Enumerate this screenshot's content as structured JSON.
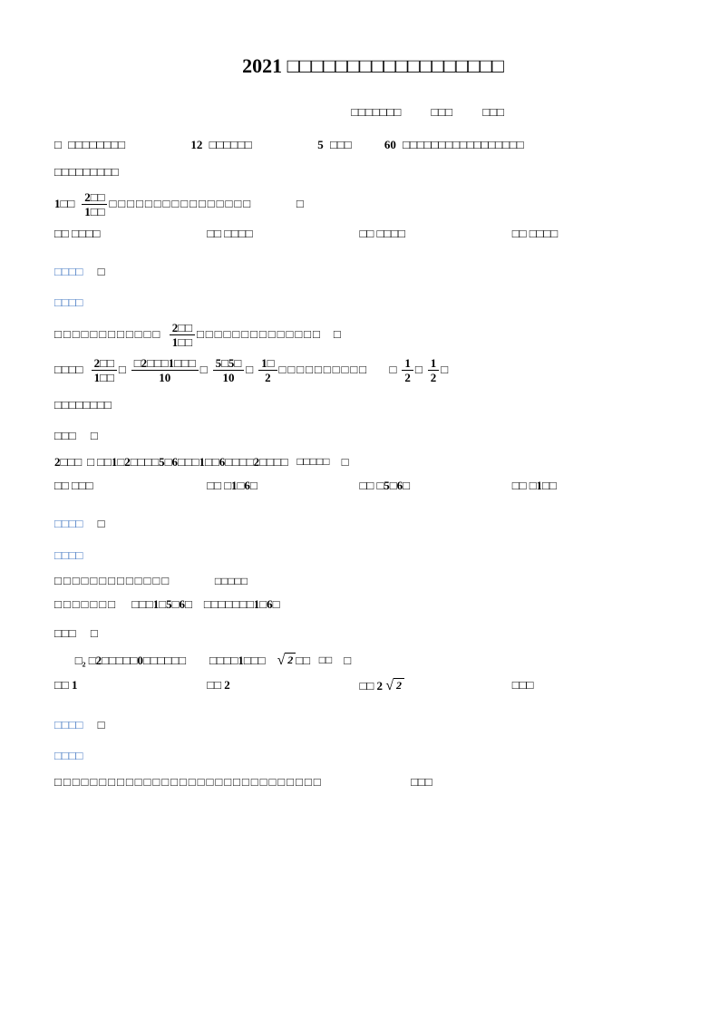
{
  "colors": {
    "text": "#000000",
    "blue": "#4a7cc4",
    "bg": "#ffffff"
  },
  "fonts": {
    "title_size": 22,
    "body_size": 13
  },
  "title": "2021 □□□□□□□□□□□□□□□□□□",
  "subtitle": {
    "left": "□□□□□□□",
    "mid": "□□□",
    "right": "□□□"
  },
  "section1": {
    "lead": "□ □□□□□□□□",
    "count": "12 □□□□□□",
    "each": "5 □□□",
    "total": "60 □□□□□□□□□□□□□□□□□",
    "tail": "□□□□□□□□□"
  },
  "q1": {
    "num": "1□□",
    "frac_top": "2□□",
    "frac_bot": "1□□",
    "stem": "□□□□□□□□□□□□□□□□",
    "dot": "□",
    "optA": "□□ □□□□",
    "optB": "□□ □□□□",
    "optC": "□□ □□□□",
    "optD": "□□ □□□□",
    "ans_label": "□□□□",
    "ans": "□",
    "exp_label": "□□□□",
    "exp_line1_pre": "□□□□□□□□□□□□",
    "exp_line1_post": "□□□□□□□□□□□□□□",
    "exp_eq_label": "□□□□",
    "right_frac_l": "1",
    "right_frac_r": "1",
    "right_frac_bot_l": "2",
    "right_frac_bot_r": "2",
    "exp_line3": "□□□□□□□□",
    "end_label": "□□□",
    "end": "□"
  },
  "q2": {
    "num": "2□□□",
    "stem": "□ □□1□2□□□□5□6□□□1□□6□□□□2□□□□",
    "stem_tail": "□□□□□",
    "end": "□",
    "optA": "□□ □□□",
    "optB": "□□ □1□6□",
    "optC": "□□ □5□6□",
    "optD": "□□ □1□□",
    "ans_label": "□□□□",
    "ans": "□",
    "exp_label": "□□□□",
    "exp_line1": "□□□□□□□□□□□□□",
    "exp_line1_tail": "□□□□□",
    "exp_line2_pre": "□□□□□□□",
    "exp_line2_a": "□□□1□5□6□",
    "exp_line2_b": "□□□□□□□1□6□",
    "end_label": "□□□",
    "end2": "□"
  },
  "q3": {
    "stem_pre": "□₂ □2□□□□□0□□□□□□",
    "stem_mid": "□□□□1□□□",
    "stem_end": "□□",
    "dot": "□",
    "optA": "□□ 1",
    "optB": "□□ 2",
    "optC": "□□ 2",
    "optD": "□□□",
    "ans_label": "□□□□",
    "ans": "□",
    "exp_label": "□□□□",
    "exp_line": "□□□□□□□□□□□□□□□□□□□□□□□□□□□□□□",
    "exp_tail": "□□□"
  }
}
